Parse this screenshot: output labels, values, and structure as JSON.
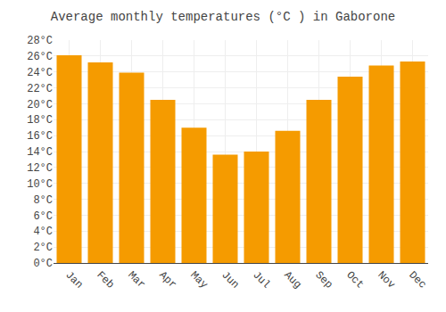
{
  "chart_data": {
    "type": "bar",
    "title": "Average monthly temperatures (°C ) in Gaborone",
    "categories": [
      "Jan",
      "Feb",
      "Mar",
      "Apr",
      "May",
      "Jun",
      "Jul",
      "Aug",
      "Sep",
      "Oct",
      "Nov",
      "Dec"
    ],
    "values": [
      26.1,
      25.2,
      23.9,
      20.5,
      17.0,
      13.6,
      14.0,
      16.6,
      20.5,
      23.4,
      24.8,
      25.3
    ],
    "color": "#F59B00",
    "ylim": [
      0,
      28
    ],
    "yticks": [
      {
        "value": 0,
        "label": "0°C"
      },
      {
        "value": 2,
        "label": "2°C"
      },
      {
        "value": 4,
        "label": "4°C"
      },
      {
        "value": 6,
        "label": "6°C"
      },
      {
        "value": 8,
        "label": "8°C"
      },
      {
        "value": 10,
        "label": "10°C"
      },
      {
        "value": 12,
        "label": "12°C"
      },
      {
        "value": 14,
        "label": "14°C"
      },
      {
        "value": 16,
        "label": "16°C"
      },
      {
        "value": 18,
        "label": "18°C"
      },
      {
        "value": 20,
        "label": "20°C"
      },
      {
        "value": 22,
        "label": "22°C"
      },
      {
        "value": 24,
        "label": "24°C"
      },
      {
        "value": 26,
        "label": "26°C"
      },
      {
        "value": 28,
        "label": "28°C"
      }
    ],
    "grid": true
  }
}
